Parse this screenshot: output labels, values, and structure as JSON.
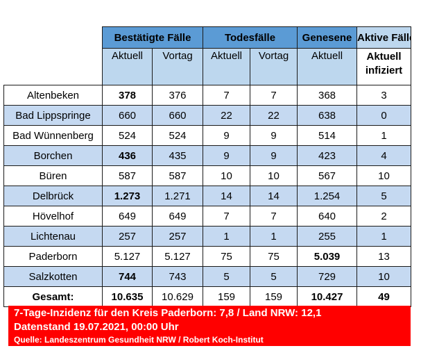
{
  "groups": {
    "confirmed": "Bestätigte Fälle",
    "deaths": "Todesfälle",
    "recovered": "Genesene",
    "active": "Aktive Fälle"
  },
  "subheaders": {
    "current": "Aktuell",
    "previous": "Vortag",
    "active_line1": "Aktuell",
    "active_line2": "infiziert"
  },
  "rows": [
    {
      "name": "Altenbeken",
      "confirmed_cur": "378",
      "confirmed_prev": "376",
      "deaths_cur": "7",
      "deaths_prev": "7",
      "recovered": "368",
      "active": "3"
    },
    {
      "name": "Bad Lippspringe",
      "confirmed_cur": "660",
      "confirmed_prev": "660",
      "deaths_cur": "22",
      "deaths_prev": "22",
      "recovered": "638",
      "active": "0"
    },
    {
      "name": "Bad Wünnenberg",
      "confirmed_cur": "524",
      "confirmed_prev": "524",
      "deaths_cur": "9",
      "deaths_prev": "9",
      "recovered": "514",
      "active": "1"
    },
    {
      "name": "Borchen",
      "confirmed_cur": "436",
      "confirmed_prev": "435",
      "deaths_cur": "9",
      "deaths_prev": "9",
      "recovered": "423",
      "active": "4"
    },
    {
      "name": "Büren",
      "confirmed_cur": "587",
      "confirmed_prev": "587",
      "deaths_cur": "10",
      "deaths_prev": "10",
      "recovered": "567",
      "active": "10"
    },
    {
      "name": "Delbrück",
      "confirmed_cur": "1.273",
      "confirmed_prev": "1.271",
      "deaths_cur": "14",
      "deaths_prev": "14",
      "recovered": "1.254",
      "active": "5"
    },
    {
      "name": "Hövelhof",
      "confirmed_cur": "649",
      "confirmed_prev": "649",
      "deaths_cur": "7",
      "deaths_prev": "7",
      "recovered": "640",
      "active": "2"
    },
    {
      "name": "Lichtenau",
      "confirmed_cur": "257",
      "confirmed_prev": "257",
      "deaths_cur": "1",
      "deaths_prev": "1",
      "recovered": "255",
      "active": "1"
    },
    {
      "name": "Paderborn",
      "confirmed_cur": "5.127",
      "confirmed_prev": "5.127",
      "deaths_cur": "75",
      "deaths_prev": "75",
      "recovered": "5.039",
      "active": "13"
    },
    {
      "name": "Salzkotten",
      "confirmed_cur": "744",
      "confirmed_prev": "743",
      "deaths_cur": "5",
      "deaths_prev": "5",
      "recovered": "729",
      "active": "10"
    }
  ],
  "total": {
    "name": "Gesamt:",
    "confirmed_cur": "10.635",
    "confirmed_prev": "10.629",
    "deaths_cur": "159",
    "deaths_prev": "159",
    "recovered": "10.427",
    "active": "49"
  },
  "footer": {
    "incidence": "7-Tage-Inzidenz für den Kreis Paderborn: 7,8 / Land NRW: 12,1",
    "date": "Datenstand 19.07.2021, 00:00 Uhr",
    "source": "Quelle: Landeszentrum Gesundheit NRW / Robert Koch-Institut"
  }
}
